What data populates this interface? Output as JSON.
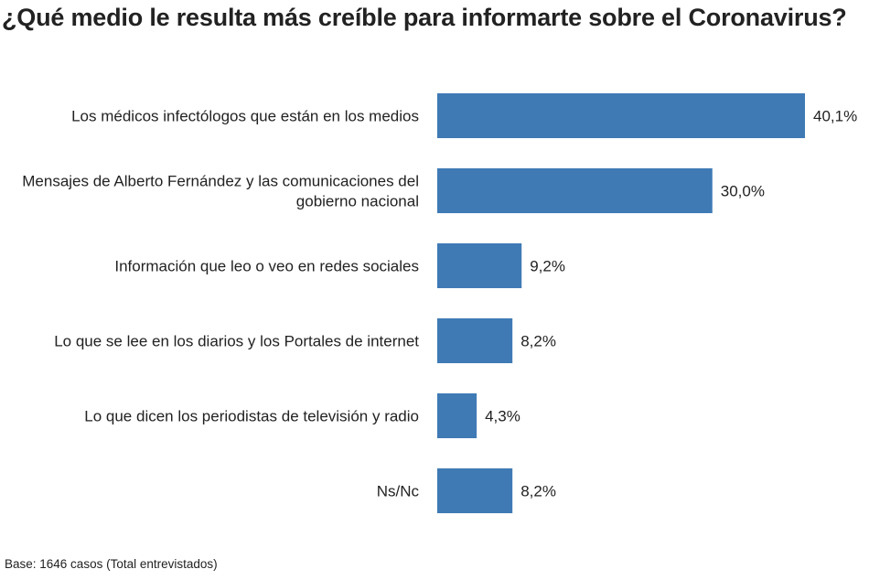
{
  "chart_data": {
    "type": "bar",
    "orientation": "horizontal",
    "title": "¿Qué medio le resulta más creíble para informarte sobre el Coronavirus?",
    "categories": [
      [
        "Los médicos infectólogos que están en los medios"
      ],
      [
        "Mensajes de Alberto Fernández y las comunicaciones del",
        "gobierno nacional"
      ],
      [
        "Información que leo o veo en redes sociales"
      ],
      [
        "Lo que se lee en los diarios y los Portales de internet"
      ],
      [
        "Lo que dicen los periodistas de televisión y radio"
      ],
      [
        "Ns/Nc"
      ]
    ],
    "values": [
      40.1,
      30.0,
      9.2,
      8.2,
      4.3,
      8.2
    ],
    "value_labels": [
      "40,1%",
      "30,0%",
      "9,2%",
      "8,2%",
      "4,3%",
      "8,2%"
    ],
    "unit": "%",
    "bar_color": "#3f7ab5",
    "xlim": [
      0,
      40.1
    ],
    "grid": false,
    "legend": "none",
    "footnote": "Base: 1646 casos (Total entrevistados)"
  }
}
